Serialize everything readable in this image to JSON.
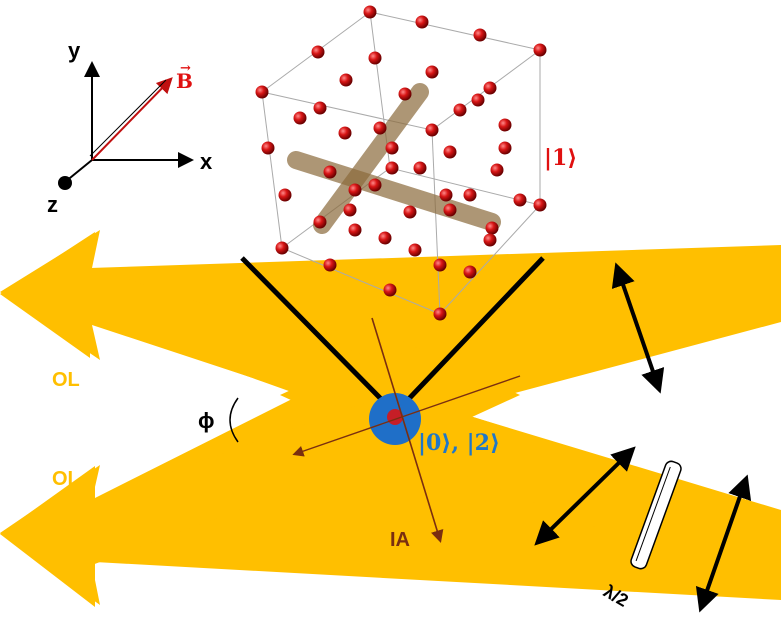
{
  "axes": {
    "x_label": "x",
    "y_label": "y",
    "z_label": "z",
    "field_label": "B",
    "field_color": "#e01010"
  },
  "beams": {
    "upper_label": "OL",
    "lower_label": "OL",
    "angle_label": "ϕ",
    "color": "#ffbf00",
    "label_color": "#ffbf00"
  },
  "states": {
    "lattice_state": "|1⟩",
    "lattice_state_color": "#e01010",
    "atom_state": "|0⟩, |2⟩",
    "atom_state_color": "#1f77c8"
  },
  "imaging": {
    "label": "IA",
    "color": "#7a2e10"
  },
  "waveplate": {
    "label": "λ/2"
  },
  "colors": {
    "atom_blue": "#1f6fc8",
    "lattice_sphere": "#d01010",
    "tube": "#8a6a3a"
  }
}
